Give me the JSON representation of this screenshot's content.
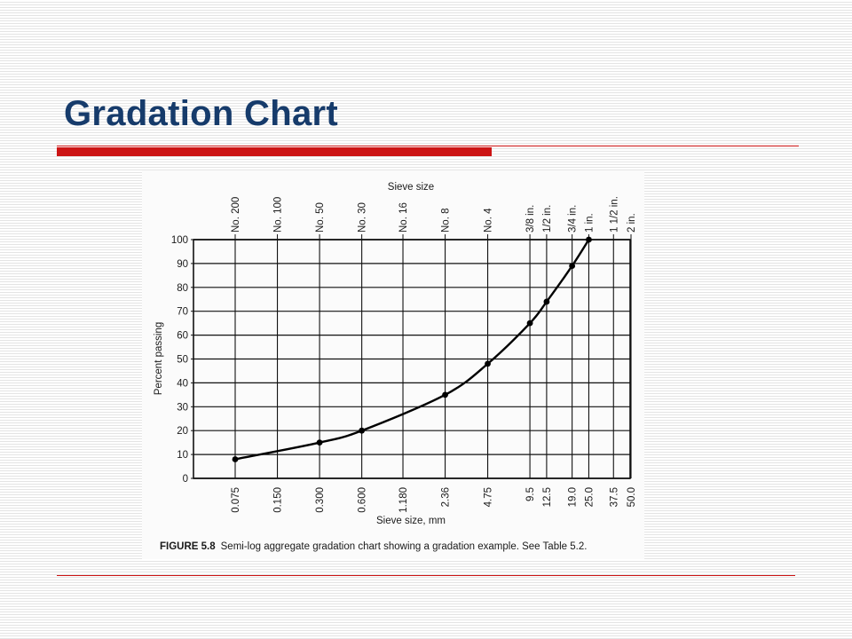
{
  "slide": {
    "title": "Gradation Chart"
  },
  "colors": {
    "title": "#163b6b",
    "accent_rule": "#cc1414"
  },
  "figure": {
    "caption_label": "FIGURE 5.8",
    "caption_text": "Semi-log aggregate gradation chart showing a gradation example. See Table 5.2."
  },
  "chart_data": {
    "type": "line",
    "title": "",
    "top_axis_title": "Sieve size",
    "xlabel": "Sieve size, mm",
    "ylabel": "Percent passing",
    "x_scale": "log",
    "x_ticks": [
      {
        "mm": 0.075,
        "label": "0.075",
        "sieve": "No. 200"
      },
      {
        "mm": 0.15,
        "label": "0.150",
        "sieve": "No. 100"
      },
      {
        "mm": 0.3,
        "label": "0.300",
        "sieve": "No. 50"
      },
      {
        "mm": 0.6,
        "label": "0.600",
        "sieve": "No. 30"
      },
      {
        "mm": 1.18,
        "label": "1.180",
        "sieve": "No. 16"
      },
      {
        "mm": 2.36,
        "label": "2.36",
        "sieve": "No. 8"
      },
      {
        "mm": 4.75,
        "label": "4.75",
        "sieve": "No. 4"
      },
      {
        "mm": 9.5,
        "label": "9.5",
        "sieve": "3/8 in."
      },
      {
        "mm": 12.5,
        "label": "12.5",
        "sieve": "1/2 in."
      },
      {
        "mm": 19.0,
        "label": "19.0",
        "sieve": "3/4 in."
      },
      {
        "mm": 25.0,
        "label": "25.0",
        "sieve": "1 in."
      },
      {
        "mm": 37.5,
        "label": "37.5",
        "sieve": "1 1/2 in."
      },
      {
        "mm": 50.0,
        "label": "50.0",
        "sieve": "2 in."
      }
    ],
    "ylim": [
      0,
      100
    ],
    "y_ticks": [
      0,
      10,
      20,
      30,
      40,
      50,
      60,
      70,
      80,
      90,
      100
    ],
    "grid": true,
    "series": [
      {
        "points": [
          {
            "x": 0.075,
            "y": 8
          },
          {
            "x": 0.3,
            "y": 15
          },
          {
            "x": 0.6,
            "y": 20
          },
          {
            "x": 2.36,
            "y": 35
          },
          {
            "x": 4.75,
            "y": 48
          },
          {
            "x": 9.5,
            "y": 65
          },
          {
            "x": 12.5,
            "y": 74
          },
          {
            "x": 19.0,
            "y": 89
          },
          {
            "x": 25.0,
            "y": 100
          }
        ]
      }
    ]
  }
}
